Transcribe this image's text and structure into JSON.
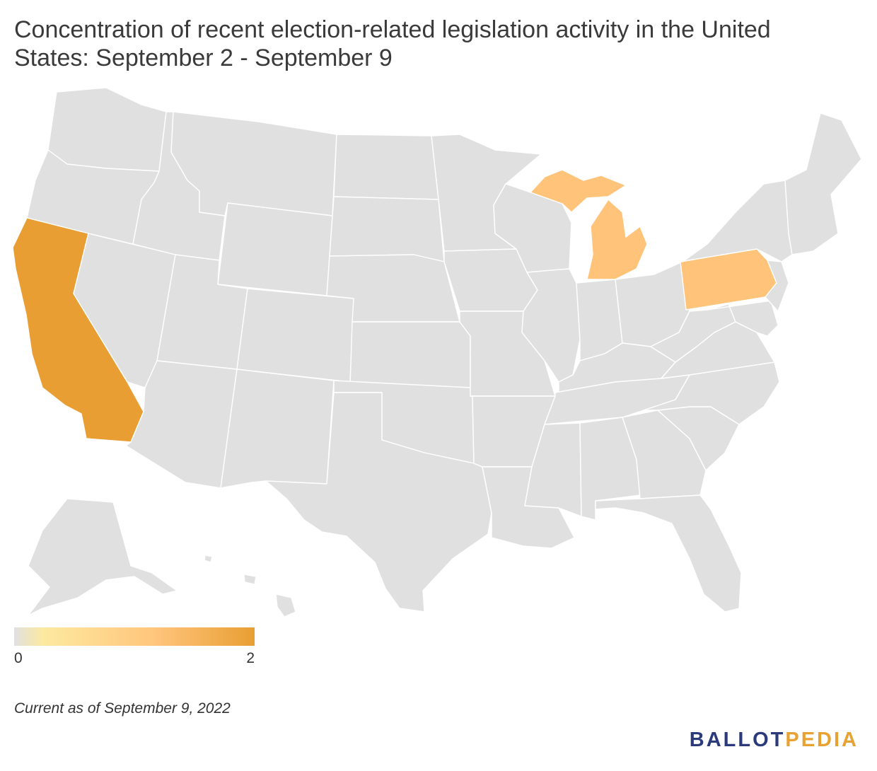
{
  "title": "Concentration of recent election-related legislation activity in the United States: September 2 - September 9",
  "colors": {
    "none": "#e0e0e0",
    "low": "#fde9a0",
    "mid": "#ffc47a",
    "high": "#e89e32",
    "border": "#ffffff",
    "logo_primary": "#2b3a7b",
    "logo_accent": "#e8a232"
  },
  "chart_data": {
    "type": "choropleth",
    "scale_min": 0,
    "scale_max": 2,
    "highlighted_states": [
      {
        "state": "California",
        "value": 2
      },
      {
        "state": "Michigan",
        "value": 1
      },
      {
        "state": "Pennsylvania",
        "value": 1
      }
    ],
    "other_states_value": 0
  },
  "legend": {
    "min_label": "0",
    "max_label": "2"
  },
  "footnote": "Current as of September 9, 2022",
  "logo": {
    "part1": "BALLOT",
    "part2": "PEDIA"
  }
}
